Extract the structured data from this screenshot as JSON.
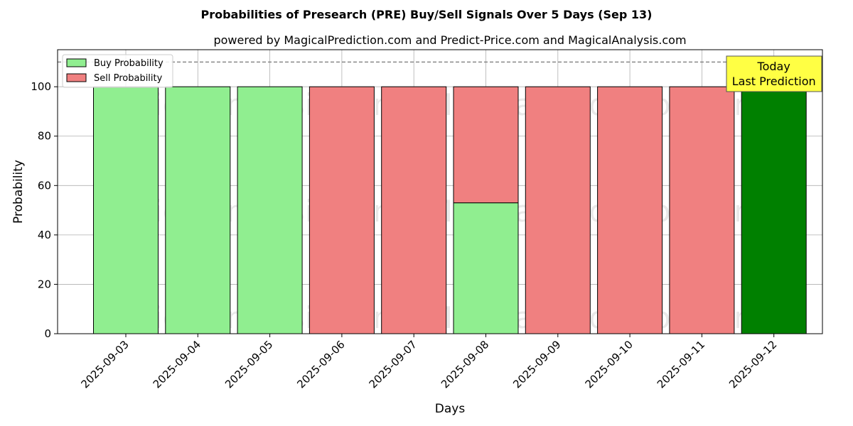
{
  "chart_data": {
    "type": "bar",
    "title": "Probabilities of Presearch (PRE) Buy/Sell Signals Over 5 Days (Sep 13)",
    "subtitle": "powered by MagicalPrediction.com and Predict-Price.com and MagicalAnalysis.com",
    "xlabel": "Days",
    "ylabel": "Probability",
    "ylim": [
      0,
      115
    ],
    "yticks": [
      0,
      20,
      40,
      60,
      80,
      100
    ],
    "reference_line": 110,
    "grid": true,
    "legend_position": "top-left",
    "categories": [
      "2025-09-03",
      "2025-09-04",
      "2025-09-05",
      "2025-09-06",
      "2025-09-07",
      "2025-09-08",
      "2025-09-09",
      "2025-09-10",
      "2025-09-11",
      "2025-09-12"
    ],
    "series": [
      {
        "name": "Buy Probability",
        "color": "#90ee90",
        "values": [
          100,
          100,
          100,
          0,
          0,
          53,
          0,
          0,
          0,
          100
        ]
      },
      {
        "name": "Sell Probability",
        "color": "#f08080",
        "values": [
          0,
          0,
          0,
          100,
          100,
          47,
          100,
          100,
          100,
          0
        ]
      }
    ],
    "highlight": {
      "index": 9,
      "color": "#008000",
      "label_lines": [
        "Today",
        "Last Prediction"
      ],
      "box_color": "#ffff44"
    },
    "watermarks": [
      "MagicalAnalysis.com",
      "MagicalPrediction.com"
    ]
  }
}
